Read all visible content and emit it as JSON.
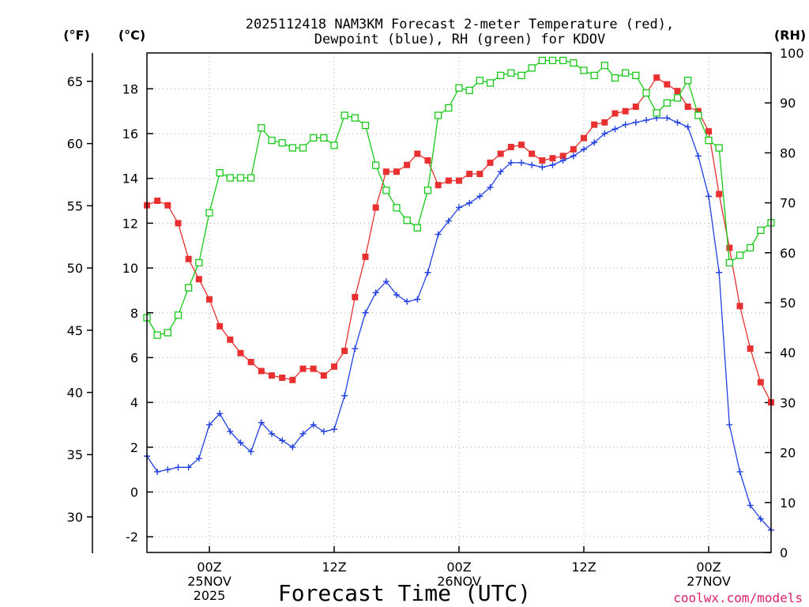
{
  "chart_data": {
    "type": "line",
    "title_line1": "2025112418 NAM3KM Forecast 2-meter Temperature (red),",
    "title_line2": "Dewpoint (blue), RH (green) for KDOV",
    "xlabel": "Forecast Time (UTC)",
    "credit": "coolwx.com/models",
    "left_unit_f": "(°F)",
    "left_unit_c": "(°C)",
    "right_unit": "(RH)",
    "y_celsius": {
      "range": [
        -2.7,
        19.6
      ],
      "ticks": [
        "-2",
        "0",
        "2",
        "4",
        "6",
        "8",
        "10",
        "12",
        "14",
        "16",
        "18"
      ]
    },
    "y_fahrenheit": {
      "range": [
        27.14,
        67.28
      ],
      "ticks": [
        "30",
        "35",
        "40",
        "45",
        "50",
        "55",
        "60",
        "65"
      ]
    },
    "y_rh": {
      "range": [
        0,
        100
      ],
      "ticks": [
        "0",
        "10",
        "20",
        "30",
        "40",
        "50",
        "60",
        "70",
        "80",
        "90",
        "100"
      ]
    },
    "x_range_hours": [
      0,
      60
    ],
    "x_ticks": [
      {
        "hour": 6,
        "lines": [
          "00Z",
          "25NOV",
          "2025"
        ]
      },
      {
        "hour": 18,
        "lines": [
          "12Z"
        ]
      },
      {
        "hour": 30,
        "lines": [
          "00Z",
          "26NOV"
        ]
      },
      {
        "hour": 42,
        "lines": [
          "12Z"
        ]
      },
      {
        "hour": 54,
        "lines": [
          "00Z",
          "27NOV"
        ]
      }
    ],
    "series": [
      {
        "name": "Temperature",
        "unit": "C",
        "color": "#e83030",
        "marker": "filled-square",
        "points": [
          [
            0,
            12.8
          ],
          [
            1,
            13
          ],
          [
            2,
            12.8
          ],
          [
            3,
            12
          ],
          [
            4,
            10.4
          ],
          [
            5,
            9.5
          ],
          [
            6,
            8.6
          ],
          [
            7,
            7.4
          ],
          [
            8,
            6.8
          ],
          [
            9,
            6.2
          ],
          [
            10,
            5.8
          ],
          [
            11,
            5.4
          ],
          [
            12,
            5.2
          ],
          [
            13,
            5.1
          ],
          [
            14,
            5
          ],
          [
            15,
            5.5
          ],
          [
            16,
            5.5
          ],
          [
            17,
            5.2
          ],
          [
            18,
            5.6
          ],
          [
            19,
            6.3
          ],
          [
            20,
            8.7
          ],
          [
            21,
            10.5
          ],
          [
            22,
            12.7
          ],
          [
            23,
            14.3
          ],
          [
            24,
            14.3
          ],
          [
            25,
            14.6
          ],
          [
            26,
            15.1
          ],
          [
            27,
            14.8
          ],
          [
            28,
            13.7
          ],
          [
            29,
            13.9
          ],
          [
            30,
            13.9
          ],
          [
            31,
            14.2
          ],
          [
            32,
            14.2
          ],
          [
            33,
            14.7
          ],
          [
            34,
            15.1
          ],
          [
            35,
            15.4
          ],
          [
            36,
            15.5
          ],
          [
            37,
            15.1
          ],
          [
            38,
            14.8
          ],
          [
            39,
            14.9
          ],
          [
            40,
            15
          ],
          [
            41,
            15.3
          ],
          [
            42,
            15.8
          ],
          [
            43,
            16.4
          ],
          [
            44,
            16.5
          ],
          [
            45,
            16.9
          ],
          [
            46,
            17
          ],
          [
            47,
            17.2
          ],
          [
            48,
            17.8
          ],
          [
            49,
            18.5
          ],
          [
            50,
            18.2
          ],
          [
            51,
            17.9
          ],
          [
            52,
            17.2
          ],
          [
            53,
            17
          ],
          [
            54,
            16.1
          ],
          [
            55,
            13.3
          ],
          [
            56,
            10.9
          ],
          [
            57,
            8.3
          ],
          [
            58,
            6.4
          ],
          [
            59,
            4.9
          ],
          [
            60,
            4
          ]
        ]
      },
      {
        "name": "Dewpoint",
        "unit": "C",
        "color": "#2040e0",
        "marker": "plus",
        "points": [
          [
            0,
            1.6
          ],
          [
            1,
            0.9
          ],
          [
            2,
            1
          ],
          [
            3,
            1.1
          ],
          [
            4,
            1.1
          ],
          [
            5,
            1.5
          ],
          [
            6,
            3
          ],
          [
            7,
            3.5
          ],
          [
            8,
            2.7
          ],
          [
            9,
            2.2
          ],
          [
            10,
            1.8
          ],
          [
            11,
            3.1
          ],
          [
            12,
            2.6
          ],
          [
            13,
            2.3
          ],
          [
            14,
            2
          ],
          [
            15,
            2.6
          ],
          [
            16,
            3
          ],
          [
            17,
            2.7
          ],
          [
            18,
            2.8
          ],
          [
            19,
            4.3
          ],
          [
            20,
            6.4
          ],
          [
            21,
            8
          ],
          [
            22,
            8.9
          ],
          [
            23,
            9.4
          ],
          [
            24,
            8.8
          ],
          [
            25,
            8.5
          ],
          [
            26,
            8.6
          ],
          [
            27,
            9.8
          ],
          [
            28,
            11.5
          ],
          [
            29,
            12.1
          ],
          [
            30,
            12.7
          ],
          [
            31,
            12.9
          ],
          [
            32,
            13.2
          ],
          [
            33,
            13.6
          ],
          [
            34,
            14.3
          ],
          [
            35,
            14.7
          ],
          [
            36,
            14.7
          ],
          [
            37,
            14.6
          ],
          [
            38,
            14.5
          ],
          [
            39,
            14.6
          ],
          [
            40,
            14.8
          ],
          [
            41,
            15
          ],
          [
            42,
            15.3
          ],
          [
            43,
            15.6
          ],
          [
            44,
            16
          ],
          [
            45,
            16.2
          ],
          [
            46,
            16.4
          ],
          [
            47,
            16.5
          ],
          [
            48,
            16.6
          ],
          [
            49,
            16.7
          ],
          [
            50,
            16.7
          ],
          [
            51,
            16.5
          ],
          [
            52,
            16.3
          ],
          [
            53,
            15
          ],
          [
            54,
            13.2
          ],
          [
            55,
            9.8
          ],
          [
            56,
            3
          ],
          [
            57,
            0.9
          ],
          [
            58,
            -0.6
          ],
          [
            59,
            -1.2
          ],
          [
            60,
            -1.7
          ]
        ]
      },
      {
        "name": "RH",
        "unit": "%",
        "color": "#18c818",
        "marker": "open-square",
        "points": [
          [
            0,
            47
          ],
          [
            1,
            43.5
          ],
          [
            2,
            44
          ],
          [
            3,
            47.5
          ],
          [
            4,
            53
          ],
          [
            5,
            58
          ],
          [
            6,
            68
          ],
          [
            7,
            76
          ],
          [
            8,
            75
          ],
          [
            9,
            75
          ],
          [
            10,
            75
          ],
          [
            11,
            85
          ],
          [
            12,
            82.5
          ],
          [
            13,
            82
          ],
          [
            14,
            81
          ],
          [
            15,
            81
          ],
          [
            16,
            83
          ],
          [
            17,
            83
          ],
          [
            18,
            81.5
          ],
          [
            19,
            87.5
          ],
          [
            20,
            87
          ],
          [
            21,
            85.5
          ],
          [
            22,
            77.5
          ],
          [
            23,
            72.5
          ],
          [
            24,
            69
          ],
          [
            25,
            66.5
          ],
          [
            26,
            65
          ],
          [
            27,
            72.5
          ],
          [
            28,
            87.5
          ],
          [
            29,
            89
          ],
          [
            30,
            93
          ],
          [
            31,
            92.5
          ],
          [
            32,
            94.5
          ],
          [
            33,
            94
          ],
          [
            34,
            95.5
          ],
          [
            35,
            96
          ],
          [
            36,
            95.5
          ],
          [
            37,
            97
          ],
          [
            38,
            98.5
          ],
          [
            39,
            98.5
          ],
          [
            40,
            98.5
          ],
          [
            41,
            98
          ],
          [
            42,
            96.5
          ],
          [
            43,
            95.5
          ],
          [
            44,
            97.5
          ],
          [
            45,
            95
          ],
          [
            46,
            96
          ],
          [
            47,
            95.5
          ],
          [
            48,
            92
          ],
          [
            49,
            88
          ],
          [
            50,
            90
          ],
          [
            51,
            91
          ],
          [
            52,
            94.5
          ],
          [
            53,
            87.5
          ],
          [
            54,
            82.5
          ],
          [
            55,
            81
          ],
          [
            56,
            58
          ],
          [
            57,
            59.5
          ],
          [
            58,
            61
          ],
          [
            59,
            64.5
          ],
          [
            60,
            66
          ]
        ]
      }
    ]
  }
}
